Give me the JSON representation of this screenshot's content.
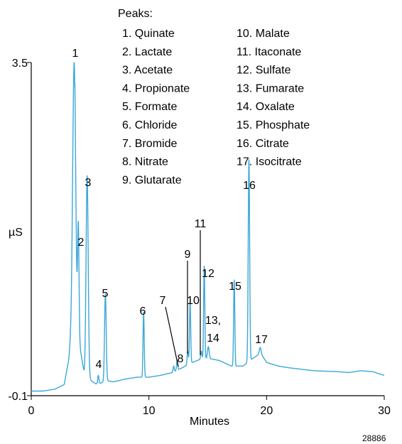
{
  "chart_data": {
    "type": "line",
    "xlabel": "Minutes",
    "ylabel": "µS",
    "xlim": [
      0,
      30
    ],
    "ylim": [
      -0.1,
      3.5
    ],
    "x_ticks": [
      "0",
      "10",
      "20",
      "30"
    ],
    "y_ticks": [
      "3.5",
      "-0.1"
    ],
    "line_color": "#3ba8d8",
    "figure_number": "28886",
    "legend": {
      "title": "Peaks:",
      "placement": "top",
      "col1": [
        "1.  Quinate",
        "2.  Lactate",
        "3.  Acetate",
        "4.  Propionate",
        "5.  Formate",
        "6.  Chloride",
        "7.  Bromide",
        "8.  Nitrate",
        "9.  Glutarate"
      ],
      "col2": [
        "10. Malate",
        "11. Itaconate",
        "12. Sulfate",
        "13. Fumarate",
        "14. Oxalate",
        "15. Phosphate",
        "16. Citrate",
        "17. Isocitrate"
      ]
    },
    "baseline": [
      [
        0,
        -0.05
      ],
      [
        1,
        -0.05
      ],
      [
        2,
        -0.03
      ],
      [
        2.8,
        0.02
      ],
      [
        3.2,
        0.3
      ],
      [
        3.5,
        0.8
      ],
      [
        4.5,
        0.1
      ],
      [
        5.2,
        0.04
      ],
      [
        5.5,
        0.02
      ],
      [
        6.5,
        0.06
      ],
      [
        7.0,
        0.05
      ],
      [
        8,
        0.08
      ],
      [
        9,
        0.1
      ],
      [
        10,
        0.1
      ],
      [
        11,
        0.12
      ],
      [
        12,
        0.15
      ],
      [
        12.8,
        0.2
      ],
      [
        13.5,
        0.25
      ],
      [
        14.5,
        0.3
      ],
      [
        15.2,
        0.3
      ],
      [
        16,
        0.28
      ],
      [
        17,
        0.22
      ],
      [
        18,
        0.22
      ],
      [
        18.8,
        0.3
      ],
      [
        19.5,
        0.36
      ],
      [
        20,
        0.26
      ],
      [
        21,
        0.22
      ],
      [
        22,
        0.2
      ],
      [
        24,
        0.17
      ],
      [
        26,
        0.16
      ],
      [
        27,
        0.15
      ],
      [
        28,
        0.17
      ],
      [
        29,
        0.16
      ],
      [
        30,
        0.12
      ]
    ],
    "peaks": [
      {
        "label": "1",
        "time": 3.65,
        "height": 3.5,
        "width": 0.12
      },
      {
        "label": "2",
        "time": 4.0,
        "height": 1.65,
        "width": 0.06
      },
      {
        "label": "3",
        "time": 4.75,
        "height": 2.25,
        "width": 0.09
      },
      {
        "label": "4",
        "time": 5.7,
        "height": 0.12,
        "width": 0.05
      },
      {
        "label": "5",
        "time": 6.3,
        "height": 1.0,
        "width": 0.07
      },
      {
        "label": "6",
        "time": 9.55,
        "height": 0.8,
        "width": 0.05
      },
      {
        "label": "7",
        "time": 12.1,
        "height": 0.22,
        "width": 0.05
      },
      {
        "label": "8",
        "time": 12.4,
        "height": 0.28,
        "width": 0.05
      },
      {
        "label": "9",
        "time": 13.3,
        "height": 0.38,
        "width": 0.05
      },
      {
        "label": "10",
        "time": 13.5,
        "height": 0.92,
        "width": 0.05
      },
      {
        "label": "11",
        "time": 14.45,
        "height": 0.38,
        "width": 0.05
      },
      {
        "label": "12",
        "time": 14.7,
        "height": 1.3,
        "width": 0.05
      },
      {
        "label": "13, 14",
        "time": 15.05,
        "height": 0.43,
        "width": 0.07
      },
      {
        "label": "15",
        "time": 17.25,
        "height": 1.15,
        "width": 0.05
      },
      {
        "label": "16",
        "time": 18.5,
        "height": 2.45,
        "width": 0.06
      },
      {
        "label": "17",
        "time": 19.45,
        "height": 0.42,
        "width": 0.07
      }
    ]
  }
}
